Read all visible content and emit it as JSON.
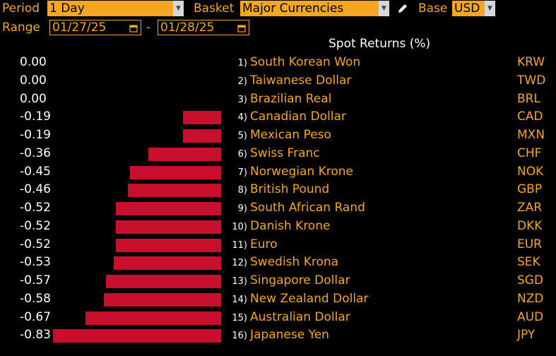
{
  "toolbar": {
    "period_label": "Period",
    "period_value": "1 Day",
    "basket_label": "Basket",
    "basket_value": "Major Currencies",
    "base_label": "Base",
    "base_value": "USD",
    "range_label": "Range",
    "range_start": "01/27/25",
    "range_sep": "-",
    "range_end": "01/28/25"
  },
  "chart_data": {
    "type": "bar",
    "title": "Spot Returns (%)",
    "rows": [
      {
        "rank": "1)",
        "name": "South Korean Won",
        "code": "KRW",
        "value": "0.00",
        "v": 0.0
      },
      {
        "rank": "2)",
        "name": "Taiwanese Dollar",
        "code": "TWD",
        "value": "0.00",
        "v": 0.0
      },
      {
        "rank": "3)",
        "name": "Brazilian Real",
        "code": "BRL",
        "value": "0.00",
        "v": 0.0
      },
      {
        "rank": "4)",
        "name": "Canadian Dollar",
        "code": "CAD",
        "value": "-0.19",
        "v": -0.19
      },
      {
        "rank": "5)",
        "name": "Mexican Peso",
        "code": "MXN",
        "value": "-0.19",
        "v": -0.19
      },
      {
        "rank": "6)",
        "name": "Swiss Franc",
        "code": "CHF",
        "value": "-0.36",
        "v": -0.36
      },
      {
        "rank": "7)",
        "name": "Norwegian Krone",
        "code": "NOK",
        "value": "-0.45",
        "v": -0.45
      },
      {
        "rank": "8)",
        "name": "British Pound",
        "code": "GBP",
        "value": "-0.46",
        "v": -0.46
      },
      {
        "rank": "9)",
        "name": "South African Rand",
        "code": "ZAR",
        "value": "-0.52",
        "v": -0.52
      },
      {
        "rank": "10)",
        "name": "Danish Krone",
        "code": "DKK",
        "value": "-0.52",
        "v": -0.52
      },
      {
        "rank": "11)",
        "name": "Euro",
        "code": "EUR",
        "value": "-0.52",
        "v": -0.52
      },
      {
        "rank": "12)",
        "name": "Swedish Krona",
        "code": "SEK",
        "value": "-0.53",
        "v": -0.53
      },
      {
        "rank": "13)",
        "name": "Singapore Dollar",
        "code": "SGD",
        "value": "-0.57",
        "v": -0.57
      },
      {
        "rank": "14)",
        "name": "New Zealand Dollar",
        "code": "NZD",
        "value": "-0.58",
        "v": -0.58
      },
      {
        "rank": "15)",
        "name": "Australian Dollar",
        "code": "AUD",
        "value": "-0.67",
        "v": -0.67
      },
      {
        "rank": "16)",
        "name": "Japanese Yen",
        "code": "JPY",
        "value": "-0.83",
        "v": -0.83
      }
    ],
    "colors": {
      "bar": "#c8102e",
      "label": "#f5a623",
      "value": "#ffffff"
    }
  }
}
